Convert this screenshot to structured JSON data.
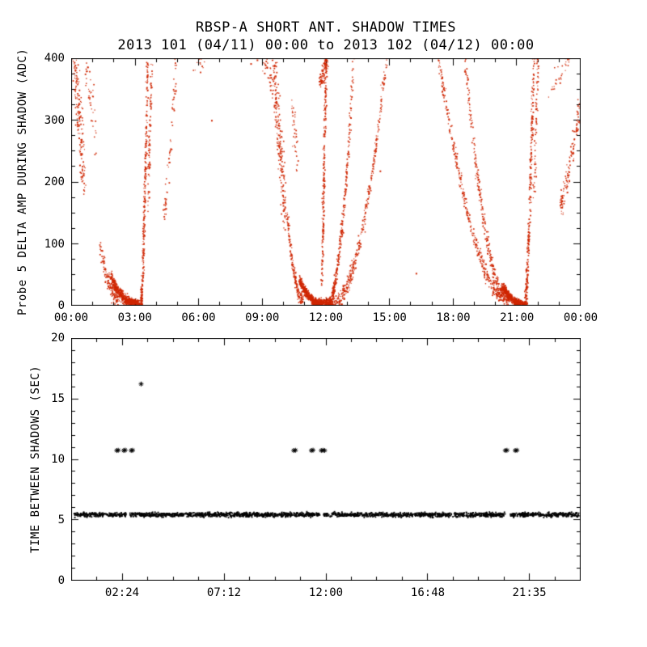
{
  "figure": {
    "bg_color": "#ffffff",
    "axis_color": "#000000"
  },
  "chart_data": [
    {
      "type": "scatter",
      "panel": "top",
      "title": "RBSP-A SHORT ANT. SHADOW TIMES",
      "subtitle": "2013 101 (04/11) 00:00 to 2013 102 (04/12) 00:00",
      "ylabel": "Probe 5 DELTA AMP DURING SHADOW (ADC)",
      "xlabel": "",
      "x_unit": "hours-of-day",
      "xlim": [
        0,
        24
      ],
      "ylim": [
        0,
        400
      ],
      "xticks": {
        "values": [
          0,
          3,
          6,
          9,
          12,
          15,
          18,
          21,
          24
        ],
        "labels": [
          "00:00",
          "03:00",
          "06:00",
          "09:00",
          "12:00",
          "15:00",
          "18:00",
          "21:00",
          "00:00"
        ]
      },
      "yticks": {
        "values": [
          0,
          100,
          200,
          300,
          400
        ],
        "labels": [
          "0",
          "100",
          "200",
          "300",
          "400"
        ]
      },
      "x_minor": 1,
      "y_minor": 25,
      "point_color": "#cf2600",
      "point_size": 1.4,
      "branches": [
        {
          "x0": 0.12,
          "x1": 0.62,
          "y0": 400,
          "y1": 195,
          "e": "lin",
          "sx": 0.09,
          "sy": 55,
          "n": 170
        },
        {
          "x0": 0.65,
          "x1": 1.15,
          "y0": 400,
          "y1": 265,
          "e": "lin",
          "sx": 0.1,
          "sy": 45,
          "n": 40
        },
        {
          "x0": 1.35,
          "x1": 2.2,
          "y0": 95,
          "y1": 10,
          "e": "out",
          "p": 1.8,
          "sx": 0.08,
          "sy": 13,
          "n": 120
        },
        {
          "x0": 1.85,
          "x1": 2.85,
          "y0": 45,
          "y1": 2,
          "e": "out",
          "p": 1.6,
          "sx": 0.07,
          "sy": 9,
          "n": 420
        },
        {
          "x0": 2.55,
          "x1": 3.2,
          "y0": 8,
          "y1": 4,
          "e": "lin",
          "sx": 0.05,
          "sy": 5,
          "n": 220
        },
        {
          "x0": 3.28,
          "x1": 3.58,
          "y0": 2,
          "y1": 400,
          "e": "in",
          "p": 1.4,
          "sx": 0.05,
          "sy": 12,
          "n": 300,
          "b": 1.3
        },
        {
          "x0": 3.6,
          "x1": 3.78,
          "y0": 170,
          "y1": 400,
          "e": "lin",
          "sx": 0.05,
          "sy": 30,
          "n": 80
        },
        {
          "x0": 4.35,
          "x1": 4.95,
          "y0": 140,
          "y1": 400,
          "e": "in",
          "p": 1.2,
          "sx": 0.06,
          "sy": 28,
          "n": 65
        },
        {
          "x0": 5.8,
          "x1": 6.25,
          "y0": 370,
          "y1": 400,
          "e": "lin",
          "sx": 0.08,
          "sy": 18,
          "n": 12
        },
        {
          "x0": 9.05,
          "x1": 9.45,
          "y0": 400,
          "y1": 355,
          "e": "lin",
          "sx": 0.08,
          "sy": 22,
          "n": 28
        },
        {
          "x0": 9.5,
          "x1": 10.05,
          "y0": 400,
          "y1": 150,
          "e": "lin",
          "sx": 0.08,
          "sy": 65,
          "n": 230
        },
        {
          "x0": 10.4,
          "x1": 10.65,
          "y0": 330,
          "y1": 235,
          "e": "lin",
          "sx": 0.06,
          "sy": 35,
          "n": 36
        },
        {
          "x0": 10.15,
          "x1": 10.9,
          "y0": 150,
          "y1": 8,
          "e": "out",
          "p": 1.9,
          "sx": 0.06,
          "sy": 12,
          "n": 170
        },
        {
          "x0": 10.75,
          "x1": 11.6,
          "y0": 40,
          "y1": 2,
          "e": "out",
          "p": 1.5,
          "sx": 0.06,
          "sy": 8,
          "n": 380
        },
        {
          "x0": 11.35,
          "x1": 12.3,
          "y0": 7,
          "y1": 4,
          "e": "lin",
          "sx": 0.05,
          "sy": 5,
          "n": 260
        },
        {
          "x0": 11.8,
          "x1": 12.0,
          "y0": 25,
          "y1": 400,
          "e": "lin",
          "sx": 0.05,
          "sy": 30,
          "n": 230
        },
        {
          "x0": 11.7,
          "x1": 12.05,
          "y0": 360,
          "y1": 400,
          "e": "lin",
          "sx": 0.06,
          "sy": 20,
          "n": 90
        },
        {
          "x0": 12.05,
          "x1": 13.3,
          "y0": 2,
          "y1": 400,
          "e": "in",
          "p": 2.0,
          "sx": 0.05,
          "sy": 11,
          "n": 320,
          "b": 1.15
        },
        {
          "x0": 12.3,
          "x1": 14.85,
          "y0": 2,
          "y1": 400,
          "e": "in",
          "p": 2.0,
          "sx": 0.06,
          "sy": 13,
          "n": 340
        },
        {
          "x0": 17.3,
          "x1": 20.35,
          "y0": 400,
          "y1": 12,
          "e": "out",
          "p": 1.7,
          "sx": 0.06,
          "sy": 13,
          "n": 340
        },
        {
          "x0": 18.55,
          "x1": 20.65,
          "y0": 400,
          "y1": 6,
          "e": "out",
          "p": 2.0,
          "sx": 0.06,
          "sy": 12,
          "n": 300
        },
        {
          "x0": 20.3,
          "x1": 21.1,
          "y0": 32,
          "y1": 2,
          "e": "out",
          "p": 1.5,
          "sx": 0.06,
          "sy": 7,
          "n": 340
        },
        {
          "x0": 20.85,
          "x1": 21.4,
          "y0": 7,
          "y1": 3,
          "e": "lin",
          "sx": 0.05,
          "sy": 4,
          "n": 160
        },
        {
          "x0": 21.4,
          "x1": 21.8,
          "y0": 2,
          "y1": 400,
          "e": "in",
          "p": 1.4,
          "sx": 0.06,
          "sy": 14,
          "n": 300,
          "b": 1.25
        },
        {
          "x0": 21.82,
          "x1": 22.0,
          "y0": 180,
          "y1": 400,
          "e": "lin",
          "sx": 0.05,
          "sy": 30,
          "n": 70
        },
        {
          "x0": 22.55,
          "x1": 23.5,
          "y0": 345,
          "y1": 400,
          "e": "lin",
          "sx": 0.1,
          "sy": 22,
          "n": 30
        },
        {
          "x0": 23.05,
          "x1": 24.0,
          "y0": 160,
          "y1": 330,
          "e": "in",
          "p": 1.3,
          "sx": 0.06,
          "sy": 22,
          "n": 130
        }
      ],
      "singles": [
        [
          6.6,
          300
        ],
        [
          8.45,
          392
        ],
        [
          8.75,
          398
        ],
        [
          14.55,
          218
        ],
        [
          16.25,
          52
        ]
      ]
    },
    {
      "type": "scatter",
      "panel": "bottom",
      "title": "",
      "ylabel": "TIME BETWEEN SHADOWS (SEC)",
      "xlabel": "",
      "x_unit": "hours-of-day",
      "xlim": [
        0,
        24
      ],
      "ylim": [
        0,
        20
      ],
      "xticks": {
        "values": [
          2.4,
          7.2,
          12.0,
          16.8,
          21.583
        ],
        "labels": [
          "02:24",
          "07:12",
          "12:00",
          "16:48",
          "21:35"
        ]
      },
      "yticks": {
        "values": [
          0,
          5,
          10,
          15,
          20
        ],
        "labels": [
          "0",
          "5",
          "10",
          "15",
          "20"
        ]
      },
      "x_minor": 1.2,
      "y_minor": 1,
      "point_color": "#000000",
      "band": {
        "y": 5.45,
        "x_start": 0.1,
        "x_end": 23.92,
        "spread": 0.18,
        "n": 2200,
        "gaps": [
          [
            2.58,
            2.74
          ],
          [
            11.7,
            11.88
          ],
          [
            20.5,
            20.68
          ]
        ]
      },
      "asterisks": [
        [
          2.15,
          10.7
        ],
        [
          2.22,
          10.72
        ],
        [
          2.48,
          10.7
        ],
        [
          2.55,
          10.73
        ],
        [
          2.83,
          10.7
        ],
        [
          2.9,
          10.72
        ],
        [
          3.3,
          16.2
        ],
        [
          10.5,
          10.7
        ],
        [
          10.58,
          10.72
        ],
        [
          11.33,
          10.7
        ],
        [
          11.41,
          10.73
        ],
        [
          11.8,
          10.7
        ],
        [
          11.88,
          10.72
        ],
        [
          11.96,
          10.7
        ],
        [
          20.48,
          10.7
        ],
        [
          20.56,
          10.72
        ],
        [
          20.95,
          10.7
        ],
        [
          21.03,
          10.72
        ]
      ]
    }
  ]
}
